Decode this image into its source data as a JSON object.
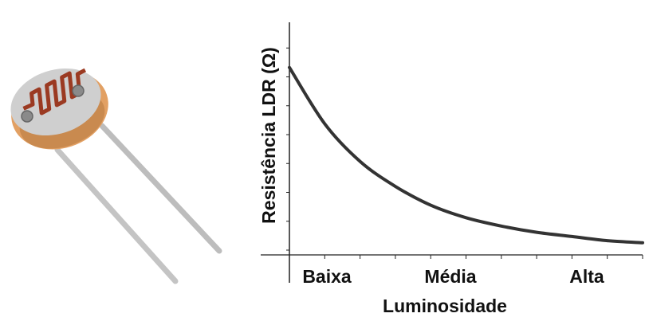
{
  "colors": {
    "curve": "#333333",
    "axis": "#222222",
    "ldr_body": "#e2a063",
    "ldr_face": "#cfcfcf",
    "ldr_track": "#9b3a22",
    "lead": "#c4c4c4"
  },
  "photo": {
    "icon": "ldr-photoresistor-icon"
  },
  "chart_data": {
    "type": "line",
    "xlabel": "Luminosidade",
    "ylabel": "Resistência LDR (Ω)",
    "categories": [
      "Baixa",
      "Média",
      "Alta"
    ],
    "x": [
      0.0,
      0.1,
      0.2,
      0.3,
      0.4,
      0.5,
      0.6,
      0.7,
      0.8,
      0.9,
      1.0
    ],
    "values": [
      0.86,
      0.59,
      0.41,
      0.29,
      0.2,
      0.14,
      0.1,
      0.07,
      0.05,
      0.03,
      0.02
    ],
    "xlim": [
      0,
      1
    ],
    "ylim": [
      0,
      1
    ],
    "x_ticks": 10,
    "y_ticks": 8,
    "grid": false,
    "legend": "none"
  }
}
